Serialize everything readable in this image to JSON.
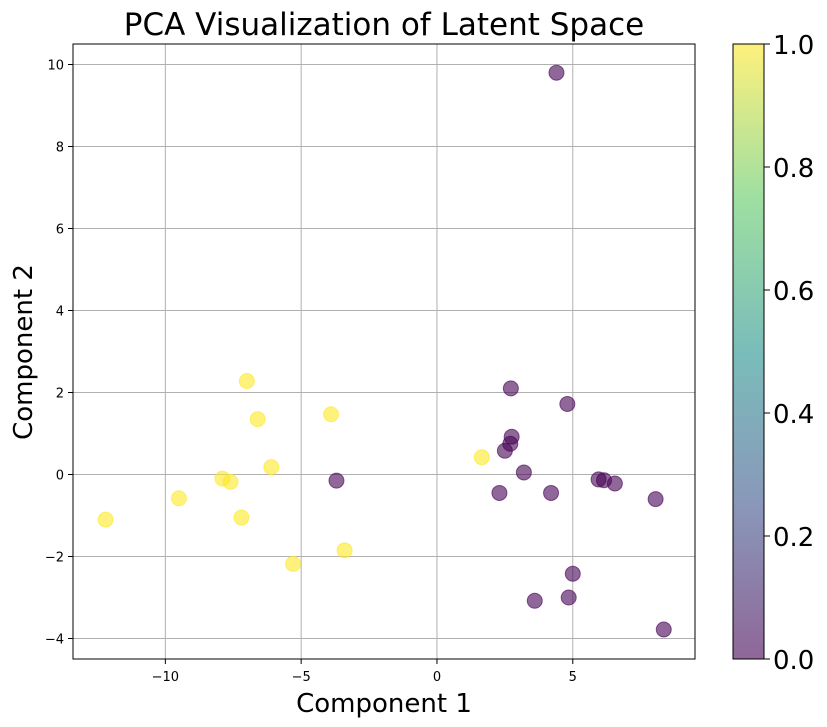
{
  "chart_data": {
    "type": "scatter",
    "title": "PCA Visualization of Latent Space",
    "xlabel": "Component 1",
    "ylabel": "Component 2",
    "xlim": [
      -13.4,
      9.5
    ],
    "ylim": [
      -4.5,
      10.5
    ],
    "xticks": [
      -10,
      -5,
      0,
      5
    ],
    "xtick_labels": [
      "−10",
      "−5",
      "0",
      "5"
    ],
    "yticks": [
      -4,
      -2,
      0,
      2,
      4,
      6,
      8,
      10
    ],
    "ytick_labels": [
      "−4",
      "−2",
      "0",
      "2",
      "4",
      "6",
      "8",
      "10"
    ],
    "grid": true,
    "colormap": "viridis",
    "alpha": 0.6,
    "colorbar": {
      "range": [
        0.0,
        1.0
      ],
      "ticks": [
        0.0,
        0.2,
        0.4,
        0.6,
        0.8,
        1.0
      ],
      "tick_labels": [
        "0.0",
        "0.2",
        "0.4",
        "0.6",
        "0.8",
        "1.0"
      ]
    },
    "points": [
      {
        "x": -12.2,
        "y": -1.1,
        "c": 1
      },
      {
        "x": -9.5,
        "y": -0.58,
        "c": 1
      },
      {
        "x": -7.9,
        "y": -0.1,
        "c": 1
      },
      {
        "x": -7.6,
        "y": -0.18,
        "c": 1
      },
      {
        "x": -7.2,
        "y": -1.05,
        "c": 1
      },
      {
        "x": -7.0,
        "y": 2.28,
        "c": 1
      },
      {
        "x": -6.6,
        "y": 1.35,
        "c": 1
      },
      {
        "x": -6.1,
        "y": 0.18,
        "c": 1
      },
      {
        "x": -5.3,
        "y": -2.18,
        "c": 1
      },
      {
        "x": -3.9,
        "y": 1.47,
        "c": 1
      },
      {
        "x": -3.4,
        "y": -1.85,
        "c": 1
      },
      {
        "x": 1.65,
        "y": 0.42,
        "c": 1
      },
      {
        "x": -3.7,
        "y": -0.15,
        "c": 0
      },
      {
        "x": 2.3,
        "y": -0.45,
        "c": 0
      },
      {
        "x": 2.5,
        "y": 0.58,
        "c": 0
      },
      {
        "x": 2.7,
        "y": 0.75,
        "c": 0
      },
      {
        "x": 2.75,
        "y": 0.92,
        "c": 0
      },
      {
        "x": 2.72,
        "y": 2.1,
        "c": 0
      },
      {
        "x": 3.2,
        "y": 0.05,
        "c": 0
      },
      {
        "x": 3.6,
        "y": -3.08,
        "c": 0
      },
      {
        "x": 4.2,
        "y": -0.45,
        "c": 0
      },
      {
        "x": 4.4,
        "y": 9.8,
        "c": 0
      },
      {
        "x": 4.8,
        "y": 1.72,
        "c": 0
      },
      {
        "x": 4.85,
        "y": -3.0,
        "c": 0
      },
      {
        "x": 5.0,
        "y": -2.42,
        "c": 0
      },
      {
        "x": 5.95,
        "y": -0.12,
        "c": 0
      },
      {
        "x": 6.15,
        "y": -0.14,
        "c": 0
      },
      {
        "x": 6.55,
        "y": -0.22,
        "c": 0
      },
      {
        "x": 8.05,
        "y": -0.6,
        "c": 0
      },
      {
        "x": 8.35,
        "y": -3.78,
        "c": 0
      }
    ]
  }
}
